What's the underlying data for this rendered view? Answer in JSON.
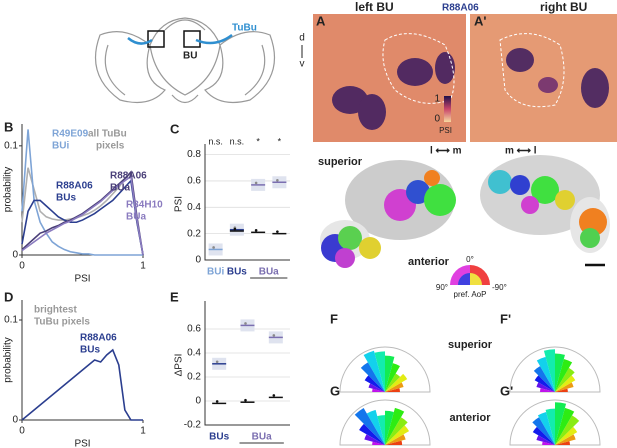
{
  "diagram": {
    "tract": "TuBu",
    "target": "BU"
  },
  "panel_a": {
    "label": "A",
    "label_prime": "A'",
    "left": "left BU",
    "line": "R88A06",
    "right": "right BU",
    "dorsal": "d",
    "ventral": "v",
    "colorbar_max": "1",
    "colorbar_min": "0",
    "colorbar_label": "PSI"
  },
  "panel_aop": {
    "left_axis": "l ⟷ m",
    "right_axis": "m ⟷ l",
    "superior": "superior",
    "anterior": "anterior",
    "wheel_top": "0°",
    "wheel_left": "90°",
    "wheel_right": "-90°",
    "wheel_label": "pref. AoP"
  },
  "chart_data": [
    {
      "type": "line",
      "label": "B",
      "xlabel": "PSI",
      "ylabel": "probability",
      "x": [
        0,
        0.05,
        0.1,
        0.15,
        0.2,
        0.25,
        0.3,
        0.35,
        0.4,
        0.45,
        0.5,
        0.55,
        0.6,
        0.65,
        0.7,
        0.75,
        0.8,
        0.85,
        0.9,
        0.95,
        1
      ],
      "xlim": [
        0,
        1
      ],
      "xticks": [
        0,
        1
      ],
      "ylim": [
        0,
        0.12
      ],
      "yticks": [
        0,
        0.1
      ],
      "series": [
        {
          "color": "#b0b0b0",
          "values": [
            0.03,
            0.08,
            0.06,
            0.04,
            0.035,
            0.033,
            0.032,
            0.032,
            0.033,
            0.034,
            0.036,
            0.038,
            0.041,
            0.045,
            0.05,
            0.056,
            0.062,
            0.07,
            0.075,
            0.03,
            0
          ]
        },
        {
          "color": "#7ea4d6",
          "values": [
            0.04,
            0.115,
            0.05,
            0.03,
            0.02,
            0.012,
            0.008,
            0.005,
            0.003,
            0.002,
            0.001,
            0.001,
            0,
            0,
            0,
            0,
            0,
            0,
            0,
            0,
            0
          ]
        },
        {
          "color": "#2b3e8f",
          "values": [
            0.01,
            0.04,
            0.05,
            0.05,
            0.045,
            0.04,
            0.035,
            0.032,
            0.03,
            0.03,
            0.032,
            0.035,
            0.038,
            0.042,
            0.046,
            0.05,
            0.056,
            0.062,
            0.068,
            0.03,
            0
          ]
        },
        {
          "color": "#4a3f78",
          "values": [
            0.005,
            0.01,
            0.015,
            0.02,
            0.022,
            0.025,
            0.027,
            0.03,
            0.032,
            0.035,
            0.038,
            0.042,
            0.046,
            0.05,
            0.055,
            0.06,
            0.065,
            0.07,
            0.076,
            0.035,
            0
          ]
        },
        {
          "color": "#8a7bbf",
          "values": [
            0.004,
            0.008,
            0.012,
            0.016,
            0.02,
            0.023,
            0.026,
            0.029,
            0.031,
            0.034,
            0.037,
            0.041,
            0.045,
            0.049,
            0.054,
            0.059,
            0.064,
            0.068,
            0.072,
            0.032,
            0
          ]
        }
      ],
      "annotations": [
        "R49E09",
        "BUi",
        "all TuBu",
        "pixels",
        "R88A06",
        "BUs",
        "R88A06",
        "BUa",
        "R34H10",
        "BUa"
      ]
    },
    {
      "type": "strip",
      "label": "C",
      "ylabel": "PSI",
      "categories": [
        "BUi",
        "BUs",
        null,
        null
      ],
      "group_label": "BUa",
      "ylim": [
        0,
        0.85
      ],
      "yticks": [
        0,
        0.2,
        0.4,
        0.6,
        0.8
      ],
      "series": [
        {
          "color": "#8a8a8a",
          "values": [
            0.08,
            0.23,
            0.57,
            0.59
          ]
        },
        {
          "color": "#111111",
          "values": [
            null,
            0.22,
            0.21,
            0.2
          ]
        }
      ],
      "cat_colors": [
        "#7ea4d6",
        "#2b3e8f",
        "#7b6fb0",
        "#7b6fb0"
      ],
      "significance": [
        "n.s.",
        "n.s.",
        "*",
        "*"
      ]
    },
    {
      "type": "line",
      "label": "D",
      "xlabel": "PSI",
      "ylabel": "probability",
      "x": [
        0,
        0.05,
        0.1,
        0.15,
        0.2,
        0.25,
        0.3,
        0.35,
        0.4,
        0.45,
        0.5,
        0.55,
        0.6,
        0.65,
        0.7,
        0.75,
        0.8,
        0.85,
        0.9,
        0.95,
        1
      ],
      "xlim": [
        0,
        1
      ],
      "xticks": [
        0,
        1
      ],
      "ylim": [
        0,
        0.12
      ],
      "yticks": [
        0,
        0.1
      ],
      "series": [
        {
          "color": "#2b3e8f",
          "values": [
            0,
            0.005,
            0.01,
            0.015,
            0.02,
            0.025,
            0.03,
            0.035,
            0.04,
            0.045,
            0.05,
            0.055,
            0.06,
            0.058,
            0.065,
            0.07,
            0.055,
            0.01,
            0,
            0,
            0
          ]
        }
      ],
      "annotations": [
        "brightest",
        "TuBu pixels",
        "R88A06",
        "BUs"
      ]
    },
    {
      "type": "strip",
      "label": "E",
      "ylabel": "ΔPSI",
      "categories": [
        "BUs",
        null,
        null
      ],
      "group_label": "BUa",
      "ylim": [
        -0.2,
        0.8
      ],
      "yticks": [
        -0.2,
        0,
        0.2,
        0.4,
        0.6
      ],
      "series": [
        {
          "color": "#8a8a8a",
          "values": [
            0.31,
            0.63,
            0.53
          ]
        },
        {
          "color": "#111111",
          "values": [
            -0.02,
            -0.01,
            0.03
          ]
        }
      ],
      "cat_colors": [
        "#2b3e8f",
        "#7b6fb0",
        "#7b6fb0"
      ],
      "significance": []
    },
    {
      "type": "rose",
      "label": "F",
      "values": [
        0.35,
        0.45,
        0.6,
        0.5,
        0.7,
        0.85,
        0.95,
        1,
        0.8,
        0.55,
        0.4,
        0.3
      ]
    },
    {
      "type": "rose",
      "label": "F'",
      "values": [
        0.3,
        0.45,
        0.55,
        0.65,
        0.8,
        0.9,
        1,
        0.85,
        0.7,
        0.55,
        0.45,
        0.35
      ]
    },
    {
      "type": "rose",
      "label": "G",
      "values": [
        0.4,
        0.5,
        0.65,
        0.75,
        0.9,
        0.8,
        0.7,
        0.85,
        1,
        0.7,
        0.5,
        0.3
      ]
    },
    {
      "type": "rose",
      "label": "G'",
      "values": [
        0.35,
        0.5,
        0.6,
        0.8,
        0.9,
        1,
        0.85,
        0.8,
        0.75,
        0.6,
        0.45,
        0.3
      ]
    }
  ],
  "rose_labels": {
    "superior": "superior",
    "anterior": "anterior"
  }
}
